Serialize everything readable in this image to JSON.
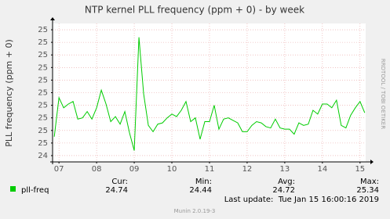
{
  "chart_data": {
    "type": "line",
    "title": "NTP kernel PLL frequency (ppm + 0) - by week",
    "y_label": "PLL frequency (ppm + 0)",
    "side_text": "RRDTOOL / TOBI OETIKER",
    "xlim": [
      6.83,
      15.15
    ],
    "xticks": [
      {
        "value": 7,
        "label": "07"
      },
      {
        "value": 8,
        "label": "08"
      },
      {
        "value": 9,
        "label": "09"
      },
      {
        "value": 10,
        "label": "10"
      },
      {
        "value": 11,
        "label": "11"
      },
      {
        "value": 12,
        "label": "12"
      },
      {
        "value": 13,
        "label": "13"
      },
      {
        "value": 14,
        "label": "14"
      },
      {
        "value": 15,
        "label": "15"
      }
    ],
    "ylim": [
      24.35,
      25.45
    ],
    "yticks": [
      {
        "value": 24.4,
        "label": "24"
      },
      {
        "value": 24.5,
        "label": "25"
      },
      {
        "value": 24.6,
        "label": "25"
      },
      {
        "value": 24.7,
        "label": "25"
      },
      {
        "value": 24.8,
        "label": "25"
      },
      {
        "value": 24.9,
        "label": "25"
      },
      {
        "value": 25.0,
        "label": "25"
      },
      {
        "value": 25.1,
        "label": "25"
      },
      {
        "value": 25.2,
        "label": "25"
      },
      {
        "value": 25.3,
        "label": "25"
      },
      {
        "value": 25.4,
        "label": "25"
      }
    ],
    "grid": true,
    "x": [
      6.875,
      7.0,
      7.125,
      7.25,
      7.375,
      7.5,
      7.625,
      7.75,
      7.875,
      8.0,
      8.125,
      8.25,
      8.375,
      8.5,
      8.625,
      8.75,
      8.875,
      9.0,
      9.125,
      9.25,
      9.375,
      9.5,
      9.625,
      9.75,
      9.875,
      10.0,
      10.125,
      10.25,
      10.375,
      10.5,
      10.625,
      10.75,
      10.875,
      11.0,
      11.125,
      11.25,
      11.375,
      11.5,
      11.625,
      11.75,
      11.875,
      12.0,
      12.125,
      12.25,
      12.375,
      12.5,
      12.625,
      12.75,
      12.875,
      13.0,
      13.125,
      13.25,
      13.375,
      13.5,
      13.625,
      13.75,
      13.875,
      14.0,
      14.125,
      14.25,
      14.375,
      14.5,
      14.625,
      14.75,
      14.875,
      15.0,
      15.125
    ],
    "series": [
      {
        "name": "pll-freq",
        "color": "#00cc00",
        "values": [
          24.55,
          24.86,
          24.78,
          24.81,
          24.83,
          24.69,
          24.7,
          24.75,
          24.69,
          24.78,
          24.92,
          24.81,
          24.67,
          24.71,
          24.65,
          24.75,
          24.58,
          24.44,
          25.34,
          24.89,
          24.64,
          24.59,
          24.65,
          24.66,
          24.7,
          24.73,
          24.71,
          24.76,
          24.83,
          24.67,
          24.7,
          24.53,
          24.67,
          24.67,
          24.8,
          24.61,
          24.69,
          24.7,
          24.68,
          24.66,
          24.59,
          24.59,
          24.64,
          24.67,
          24.66,
          24.63,
          24.62,
          24.69,
          24.62,
          24.61,
          24.61,
          24.57,
          24.66,
          24.64,
          24.65,
          24.76,
          24.73,
          24.81,
          24.81,
          24.78,
          24.84,
          24.64,
          24.62,
          24.72,
          24.78,
          24.83,
          24.74
        ]
      }
    ],
    "stats": [
      {
        "label": "Cur:",
        "value": 24.74
      },
      {
        "label": "Min:",
        "value": 24.44
      },
      {
        "label": "Avg:",
        "value": 24.72
      },
      {
        "label": "Max:",
        "value": 25.34
      }
    ],
    "last_update": "Last update:  Tue Jan 15 16:00:16 2019",
    "footer": "Munin 2.0.19-3"
  }
}
